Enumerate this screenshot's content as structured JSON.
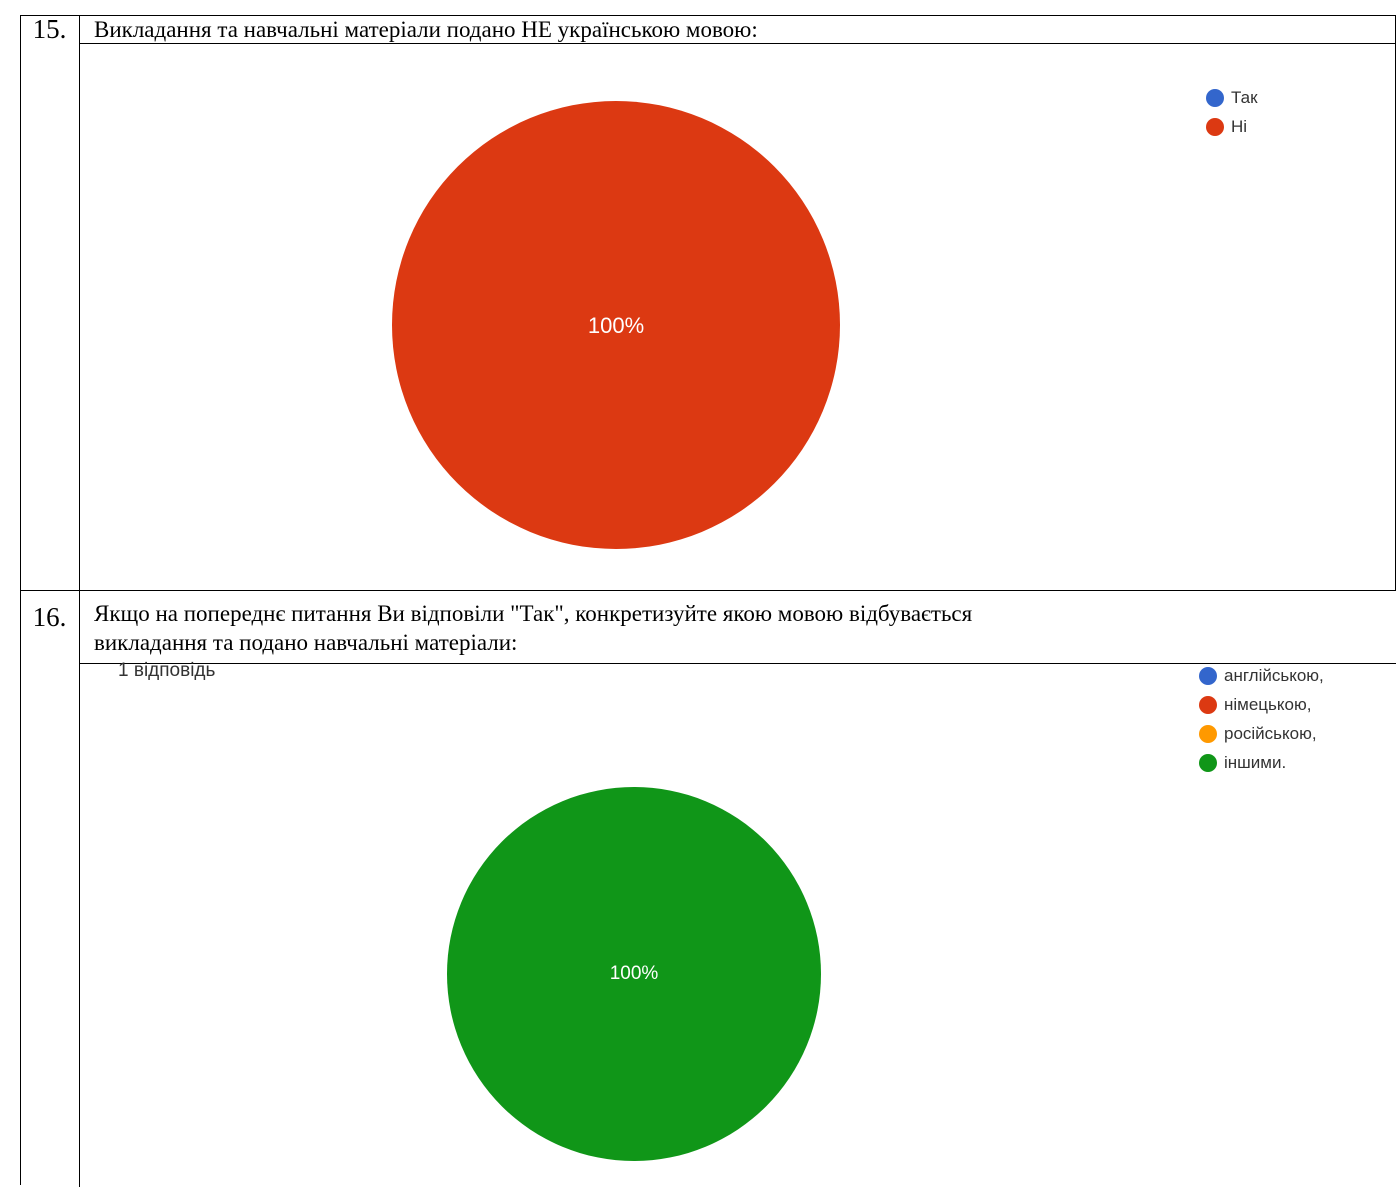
{
  "rows": [
    {
      "number": "15.",
      "question": "Викладання та навчальні матеріали подано НЕ українською мовою:"
    },
    {
      "number": "16.",
      "question_line1": "Якщо на попереднє питання Ви відповіли \"Так\", конкретизуйте якою мовою відбувається",
      "question_line2": "викладання та подано навчальні матеріали:",
      "response_count": "1 відповідь"
    }
  ],
  "chart_data": [
    {
      "type": "pie",
      "legend_position": "top-right",
      "slices": [
        {
          "label": "Так",
          "value": 0,
          "color": "#3366cc"
        },
        {
          "label": "Ні",
          "value": 100,
          "color": "#dc3912"
        }
      ],
      "data_label": "100%"
    },
    {
      "type": "pie",
      "legend_position": "top-right",
      "slices": [
        {
          "label": "англійською,",
          "value": 0,
          "color": "#3366cc"
        },
        {
          "label": "німецькою,",
          "value": 0,
          "color": "#dc3912"
        },
        {
          "label": "російською,",
          "value": 0,
          "color": "#ff9900"
        },
        {
          "label": "іншими.",
          "value": 100,
          "color": "#109618"
        }
      ],
      "data_label": "100%"
    }
  ]
}
